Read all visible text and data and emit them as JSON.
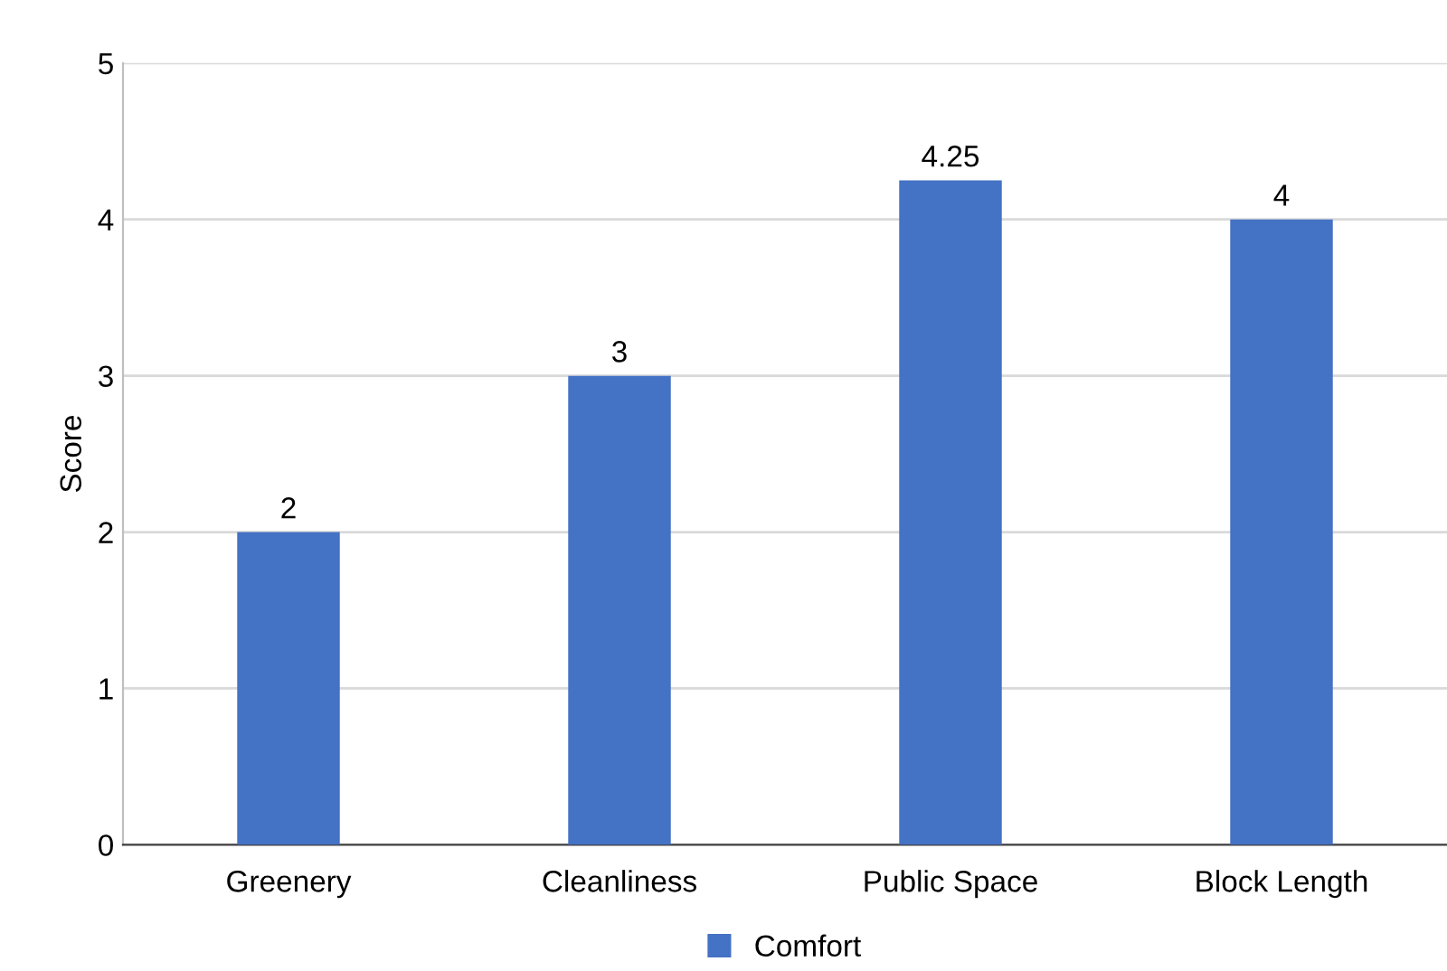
{
  "chart_data": {
    "type": "bar",
    "ylabel": "Score",
    "categories": [
      "Greenery",
      "Cleanliness",
      "Public Space",
      "Block Length"
    ],
    "series": [
      {
        "name": "Comfort",
        "color": "#4472c4",
        "values": [
          2,
          3,
          4.25,
          4
        ]
      }
    ],
    "ylim": [
      0,
      5
    ],
    "yticks": [
      0,
      1,
      2,
      3,
      4,
      5
    ],
    "grid": "y",
    "legend": "bottom",
    "data_labels": true
  }
}
